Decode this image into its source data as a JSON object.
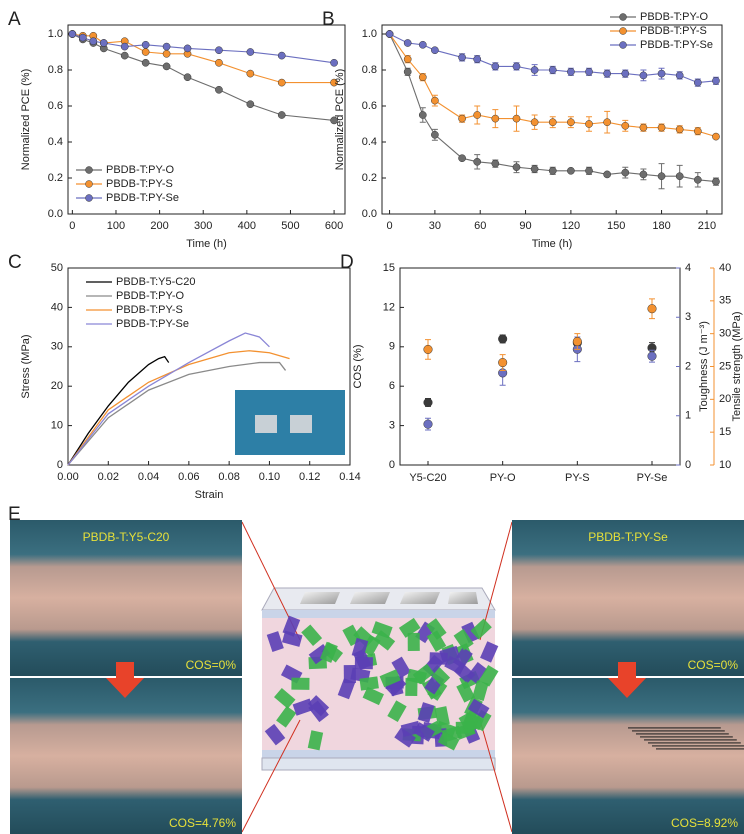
{
  "chart_data": [
    {
      "panel": "A",
      "type": "line",
      "markers": true,
      "legend": "lower left",
      "xlabel": "Time (h)",
      "ylabel": "Normalized PCE (%)",
      "xlim": [
        -10,
        625
      ],
      "xticks": [
        0,
        100,
        200,
        300,
        400,
        500,
        600
      ],
      "ylim": [
        0,
        1.05
      ],
      "yticks": [
        {
          "value": 0,
          "label": "0.0"
        },
        0.2,
        0.4,
        0.6,
        0.8,
        {
          "value": 1,
          "label": "1.0"
        }
      ],
      "x": [
        0,
        24,
        48,
        72,
        120,
        168,
        216,
        264,
        336,
        408,
        480,
        600
      ],
      "series": [
        {
          "name": "PBDB-T:PY-O",
          "color": "#6d6d6d",
          "values": [
            1.0,
            0.97,
            0.95,
            0.92,
            0.88,
            0.84,
            0.82,
            0.76,
            0.69,
            0.61,
            0.55,
            0.52
          ]
        },
        {
          "name": "PBDB-T:PY-S",
          "color": "#f39130",
          "values": [
            1.0,
            0.99,
            0.99,
            0.95,
            0.96,
            0.9,
            0.89,
            0.89,
            0.84,
            0.78,
            0.73,
            0.73
          ]
        },
        {
          "name": "PBDB-T:PY-Se",
          "color": "#6b6fc0",
          "values": [
            1.0,
            0.98,
            0.96,
            0.95,
            0.93,
            0.94,
            0.93,
            0.92,
            0.91,
            0.9,
            0.88,
            0.84
          ]
        }
      ]
    },
    {
      "panel": "B",
      "type": "line",
      "markers": true,
      "legend": "upper right",
      "xlabel": "Time (h)",
      "ylabel": "Normalized PCE (%)",
      "xlim": [
        -5,
        220
      ],
      "xticks": [
        0,
        30,
        60,
        90,
        120,
        150,
        180,
        210
      ],
      "ylim": [
        0,
        1.05
      ],
      "yticks": [
        {
          "value": 0,
          "label": "0.0"
        },
        0.2,
        0.4,
        0.6,
        0.8,
        {
          "value": 1,
          "label": "1.0"
        }
      ],
      "x": [
        0,
        12,
        22,
        30,
        48,
        58,
        70,
        84,
        96,
        108,
        120,
        132,
        144,
        156,
        168,
        180,
        192,
        204,
        216
      ],
      "series": [
        {
          "name": "PBDB-T:PY-O",
          "color": "#6d6d6d",
          "values": [
            1.0,
            0.79,
            0.55,
            0.44,
            0.31,
            0.29,
            0.28,
            0.26,
            0.25,
            0.24,
            0.24,
            0.24,
            0.22,
            0.23,
            0.22,
            0.21,
            0.21,
            0.19,
            0.18
          ],
          "errors": [
            0,
            0.02,
            0.04,
            0.03,
            0.01,
            0.04,
            0.02,
            0.03,
            0.02,
            0.02,
            0.01,
            0.02,
            0.01,
            0.03,
            0.03,
            0.07,
            0.06,
            0.04,
            0.02
          ]
        },
        {
          "name": "PBDB-T:PY-S",
          "color": "#f39130",
          "values": [
            1.0,
            0.86,
            0.76,
            0.63,
            0.53,
            0.55,
            0.53,
            0.53,
            0.51,
            0.51,
            0.51,
            0.5,
            0.51,
            0.49,
            0.48,
            0.48,
            0.47,
            0.46,
            0.43
          ],
          "errors": [
            0,
            0.02,
            0.02,
            0.03,
            0.02,
            0.05,
            0.05,
            0.07,
            0.04,
            0.03,
            0.03,
            0.04,
            0.06,
            0.03,
            0.02,
            0.02,
            0.02,
            0.02,
            0.01
          ]
        },
        {
          "name": "PBDB-T:PY-Se",
          "color": "#6b6fc0",
          "values": [
            1.0,
            0.95,
            0.94,
            0.91,
            0.87,
            0.86,
            0.82,
            0.82,
            0.8,
            0.8,
            0.79,
            0.79,
            0.78,
            0.78,
            0.77,
            0.78,
            0.77,
            0.73,
            0.74
          ],
          "errors": [
            0,
            0.01,
            0.01,
            0.01,
            0.02,
            0.02,
            0.02,
            0.02,
            0.03,
            0.02,
            0.02,
            0.02,
            0.02,
            0.02,
            0.03,
            0.03,
            0.02,
            0.02,
            0.02
          ]
        }
      ]
    },
    {
      "panel": "C",
      "type": "line",
      "markers": false,
      "legend": "upper left",
      "xlabel": "Strain",
      "ylabel": "Stress (MPa)",
      "xlim": [
        0,
        0.14
      ],
      "xticks": [
        {
          "value": 0,
          "label": "0.00"
        },
        0.02,
        0.04,
        0.06,
        0.08,
        {
          "value": 0.1,
          "label": "0.10"
        },
        0.12,
        0.14
      ],
      "ylim": [
        0,
        50
      ],
      "yticks": [
        0,
        10,
        20,
        30,
        40,
        50
      ],
      "series": [
        {
          "name": "PBDB-T:Y5-C20",
          "color": "#000000",
          "x": [
            0,
            0.01,
            0.02,
            0.03,
            0.04,
            0.045,
            0.048,
            0.05
          ],
          "values": [
            0,
            8,
            15,
            21,
            25.5,
            27,
            27.5,
            26
          ]
        },
        {
          "name": "PBDB-T:PY-O",
          "color": "#8a8a8a",
          "x": [
            0,
            0.02,
            0.04,
            0.06,
            0.08,
            0.095,
            0.105,
            0.108
          ],
          "values": [
            0,
            12,
            19,
            23,
            25,
            26,
            26,
            24
          ]
        },
        {
          "name": "PBDB-T:PY-S",
          "color": "#f39130",
          "x": [
            0,
            0.02,
            0.04,
            0.06,
            0.08,
            0.09,
            0.1,
            0.11
          ],
          "values": [
            0,
            14,
            21,
            25.5,
            28.5,
            29,
            28.5,
            27
          ]
        },
        {
          "name": "PBDB-T:PY-Se",
          "color": "#8a86d6",
          "x": [
            0,
            0.02,
            0.04,
            0.06,
            0.08,
            0.088,
            0.095,
            0.1
          ],
          "values": [
            0,
            13,
            20,
            26,
            31.5,
            33.5,
            32.5,
            30
          ]
        }
      ]
    },
    {
      "panel": "D",
      "type": "scatter",
      "ylabel": "COS (%)",
      "y2label": "Toughness (J m⁻³)",
      "y3label": "Tensile strength (MPa)",
      "categories": [
        "Y5-C20",
        "PY-O",
        "PY-S",
        "PY-Se"
      ],
      "ylim": [
        0,
        15
      ],
      "yticks": [
        0,
        3,
        6,
        9,
        12,
        15
      ],
      "y2lim": [
        0,
        4
      ],
      "y2ticks": [
        0,
        1,
        2,
        3,
        4
      ],
      "y3lim": [
        10,
        40
      ],
      "y3ticks": [
        10,
        15,
        20,
        25,
        30,
        35,
        40
      ],
      "series": [
        {
          "color": "#3a3a3a",
          "values": [
            4.76,
            9.6,
            9.3,
            8.92
          ],
          "errors": [
            0.3,
            0.3,
            0.3,
            0.4
          ]
        },
        {
          "color": "#6b6fc0",
          "axis": "y2",
          "values": [
            0.83,
            1.87,
            2.35,
            2.21
          ],
          "errors": [
            0.12,
            0.25,
            0.25,
            0.12
          ]
        },
        {
          "color": "#f39130",
          "axis": "y3",
          "values": [
            27.6,
            25.6,
            28.8,
            33.8
          ],
          "errors": [
            1.5,
            1.2,
            1.2,
            1.5
          ]
        }
      ]
    }
  ],
  "panel_e": {
    "panel": "E",
    "left": {
      "label": "PBDB-T:Y5-C20",
      "before": "COS=0%",
      "after": "COS=4.76%"
    },
    "right": {
      "label": "PBDB-T:PY-Se",
      "before": "COS=0%",
      "after": "COS=8.92%"
    }
  }
}
